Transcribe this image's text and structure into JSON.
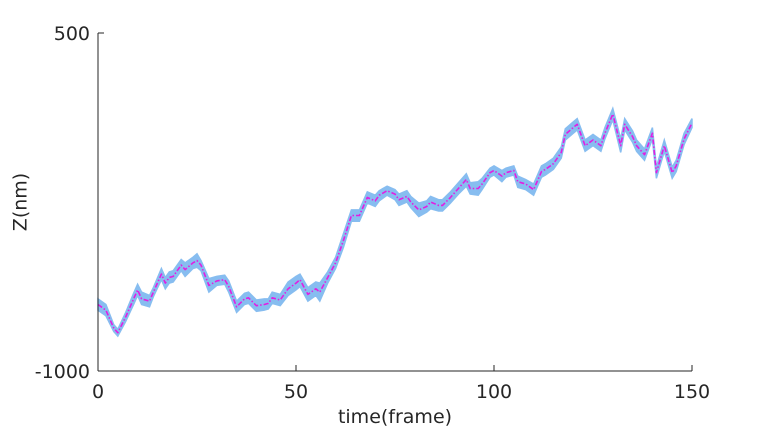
{
  "chart_data": {
    "type": "line",
    "title": "",
    "xlabel": "time(frame)",
    "ylabel": "Z(nm)",
    "xlim": [
      0,
      150
    ],
    "ylim": [
      -1000,
      500
    ],
    "xticks": [
      0,
      50,
      100,
      150
    ],
    "yticks": [
      -1000,
      500
    ],
    "grid": false,
    "box": false,
    "colors": {
      "band": "#87bdf0",
      "line": "#e21ee2",
      "axis": "#262626"
    },
    "series": [
      {
        "style": "shaded-band",
        "x": [
          0,
          2,
          4,
          5,
          7,
          9,
          10,
          11,
          13,
          14,
          16,
          17,
          18,
          19,
          21,
          22,
          24,
          25,
          26,
          28,
          30,
          32,
          33,
          35,
          37,
          38,
          40,
          42,
          43,
          44,
          46,
          48,
          50,
          51,
          53,
          55,
          56,
          58,
          60,
          62,
          64,
          66,
          68,
          70,
          71,
          73,
          75,
          76,
          78,
          79,
          81,
          83,
          84,
          86,
          87,
          89,
          91,
          93,
          94,
          96,
          97,
          99,
          100,
          102,
          103,
          105,
          106,
          108,
          110,
          112,
          113,
          115,
          117,
          118,
          120,
          121,
          123,
          125,
          127,
          128,
          130,
          132,
          133,
          135,
          136,
          138,
          140,
          141,
          143,
          145,
          146,
          148,
          150
        ],
        "y": [
          -705,
          -730,
          -810,
          -830,
          -760,
          -680,
          -640,
          -680,
          -690,
          -650,
          -570,
          -610,
          -585,
          -580,
          -530,
          -550,
          -520,
          -510,
          -530,
          -620,
          -600,
          -595,
          -625,
          -715,
          -680,
          -675,
          -710,
          -705,
          -700,
          -675,
          -685,
          -635,
          -610,
          -595,
          -660,
          -635,
          -650,
          -585,
          -520,
          -420,
          -310,
          -310,
          -230,
          -245,
          -220,
          -200,
          -215,
          -240,
          -225,
          -250,
          -285,
          -270,
          -250,
          -265,
          -265,
          -230,
          -190,
          -150,
          -190,
          -190,
          -170,
          -120,
          -110,
          -135,
          -120,
          -110,
          -160,
          -170,
          -195,
          -115,
          -105,
          -80,
          -30,
          50,
          80,
          95,
          0,
          25,
          0,
          55,
          140,
          0,
          95,
          40,
          0,
          -40,
          55,
          -120,
          0,
          -120,
          -90,
          30,
          100
        ],
        "upper": [
          -680,
          -705,
          -795,
          -815,
          -740,
          -655,
          -615,
          -650,
          -665,
          -630,
          -545,
          -585,
          -560,
          -555,
          -505,
          -520,
          -495,
          -480,
          -510,
          -590,
          -580,
          -575,
          -600,
          -690,
          -655,
          -650,
          -685,
          -680,
          -680,
          -650,
          -660,
          -605,
          -580,
          -570,
          -630,
          -605,
          -610,
          -560,
          -495,
          -390,
          -285,
          -285,
          -205,
          -220,
          -200,
          -180,
          -195,
          -215,
          -200,
          -225,
          -255,
          -245,
          -225,
          -240,
          -240,
          -205,
          -165,
          -125,
          -165,
          -160,
          -145,
          -100,
          -90,
          -110,
          -100,
          -90,
          -135,
          -150,
          -170,
          -90,
          -80,
          -55,
          -5,
          75,
          105,
          120,
          25,
          50,
          25,
          80,
          165,
          30,
          120,
          65,
          25,
          -15,
          80,
          -95,
          25,
          -95,
          -65,
          55,
          120
        ],
        "lower": [
          -730,
          -755,
          -825,
          -845,
          -780,
          -705,
          -665,
          -705,
          -715,
          -670,
          -595,
          -635,
          -610,
          -605,
          -555,
          -580,
          -545,
          -540,
          -555,
          -650,
          -620,
          -615,
          -650,
          -740,
          -705,
          -700,
          -735,
          -730,
          -725,
          -700,
          -710,
          -665,
          -640,
          -625,
          -690,
          -665,
          -690,
          -610,
          -545,
          -450,
          -335,
          -335,
          -255,
          -270,
          -245,
          -220,
          -240,
          -265,
          -250,
          -275,
          -315,
          -295,
          -280,
          -290,
          -290,
          -255,
          -215,
          -180,
          -215,
          -220,
          -195,
          -140,
          -130,
          -160,
          -140,
          -130,
          -185,
          -195,
          -220,
          -140,
          -130,
          -105,
          -55,
          25,
          55,
          70,
          -25,
          0,
          -25,
          30,
          115,
          -30,
          70,
          15,
          -25,
          -65,
          30,
          -145,
          -25,
          -145,
          -115,
          5,
          80
        ]
      },
      {
        "style": "dash-dot",
        "x": [
          0,
          2,
          4,
          5,
          7,
          9,
          10,
          11,
          13,
          14,
          16,
          17,
          18,
          19,
          21,
          22,
          24,
          25,
          26,
          28,
          30,
          32,
          33,
          35,
          37,
          38,
          40,
          42,
          43,
          44,
          46,
          48,
          50,
          51,
          53,
          55,
          56,
          58,
          60,
          62,
          64,
          66,
          68,
          70,
          71,
          73,
          75,
          76,
          78,
          79,
          81,
          83,
          84,
          86,
          87,
          89,
          91,
          93,
          94,
          96,
          97,
          99,
          100,
          102,
          103,
          105,
          106,
          108,
          110,
          112,
          113,
          115,
          117,
          118,
          120,
          121,
          123,
          125,
          127,
          128,
          130,
          132,
          133,
          135,
          136,
          138,
          140,
          141,
          143,
          145,
          146,
          148,
          150
        ],
        "y": [
          -705,
          -730,
          -810,
          -830,
          -760,
          -680,
          -640,
          -680,
          -690,
          -650,
          -570,
          -610,
          -585,
          -580,
          -530,
          -550,
          -520,
          -510,
          -530,
          -620,
          -600,
          -595,
          -625,
          -715,
          -680,
          -675,
          -710,
          -705,
          -700,
          -675,
          -685,
          -635,
          -610,
          -595,
          -660,
          -635,
          -650,
          -585,
          -520,
          -420,
          -310,
          -310,
          -230,
          -245,
          -220,
          -200,
          -215,
          -240,
          -225,
          -250,
          -285,
          -270,
          -250,
          -265,
          -265,
          -230,
          -190,
          -150,
          -190,
          -190,
          -170,
          -120,
          -110,
          -135,
          -120,
          -110,
          -160,
          -170,
          -195,
          -115,
          -105,
          -80,
          -30,
          50,
          80,
          95,
          0,
          25,
          0,
          55,
          140,
          0,
          95,
          40,
          0,
          -40,
          55,
          -120,
          0,
          -120,
          -90,
          30,
          100
        ]
      }
    ]
  }
}
